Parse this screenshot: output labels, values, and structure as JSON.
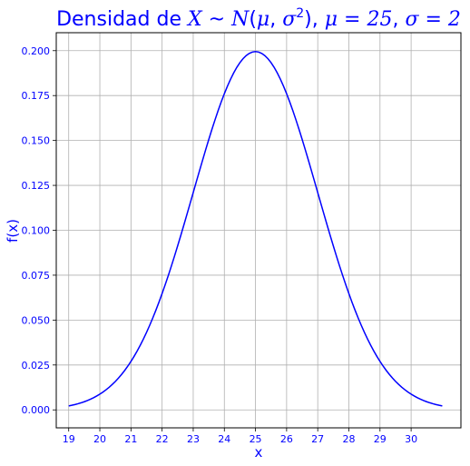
{
  "chart_data": {
    "type": "line",
    "title_prefix": "Densidad de ",
    "title_math": {
      "X": "X",
      "tilde": " ~ ",
      "N": "N",
      "open": "(",
      "mu": "μ",
      "comma": ", ",
      "sigma": "σ",
      "sup": "2",
      "close": ")",
      "mu_eq": "μ = 25",
      "sigma_eq": "σ = 2",
      "sep": ", "
    },
    "xlabel": "x",
    "ylabel": "f(x)",
    "xlim": [
      18.6,
      31.6
    ],
    "ylim": [
      -0.01,
      0.21
    ],
    "x_ticks": [
      19,
      20,
      21,
      22,
      23,
      24,
      25,
      26,
      27,
      28,
      29,
      30
    ],
    "x_tick_labels": [
      "19",
      "20",
      "21",
      "22",
      "23",
      "24",
      "25",
      "26",
      "27",
      "28",
      "29",
      "30"
    ],
    "y_ticks": [
      0.0,
      0.025,
      0.05,
      0.075,
      0.1,
      0.125,
      0.15,
      0.175,
      0.2
    ],
    "y_tick_labels": [
      "0.000",
      "0.025",
      "0.050",
      "0.075",
      "0.100",
      "0.125",
      "0.150",
      "0.175",
      "0.200"
    ],
    "grid": true,
    "series": [
      {
        "distribution": "normal",
        "mu": 25,
        "sigma": 2,
        "x_start": 19,
        "x_end": 31,
        "step": 0.1
      }
    ],
    "colors": {
      "line": "#0000ff",
      "text": "#0000ff",
      "grid": "#b0b0b0",
      "axes": "#000000"
    }
  }
}
